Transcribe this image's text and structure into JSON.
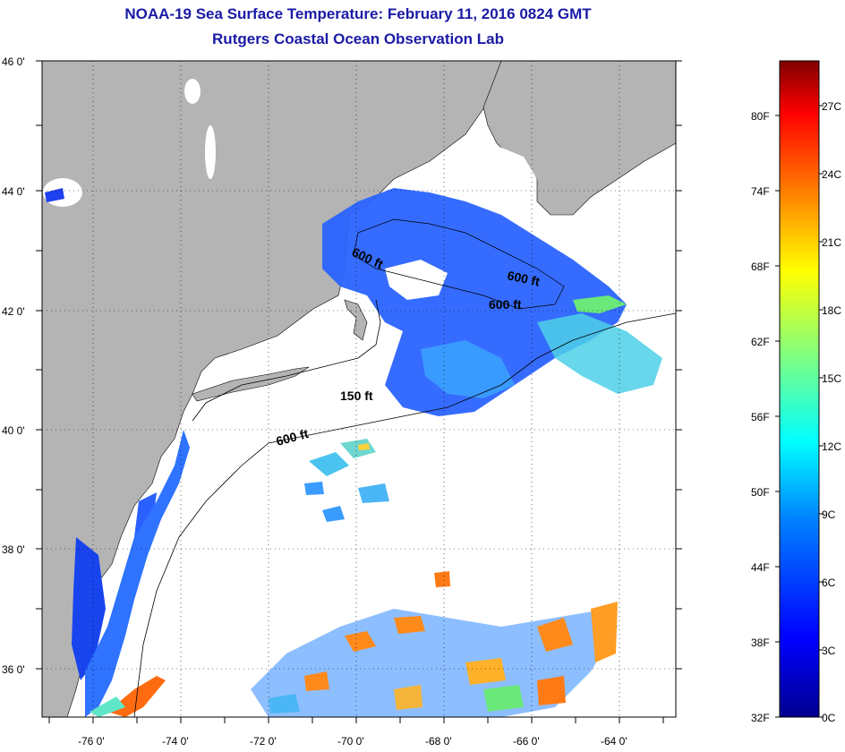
{
  "title": {
    "line1": "NOAA-19 Sea Surface Temperature:  February 11, 2016 0824 GMT",
    "line2": "Rutgers Coastal Ocean Observation Lab"
  },
  "map": {
    "lon_range": [
      -77.0,
      -62.5
    ],
    "lat_range": [
      35.0,
      46.0
    ],
    "lat_tick_labels": [
      "36 0'",
      "38 0'",
      "40 0'",
      "42 0'",
      "44 0'",
      "46 0'"
    ],
    "lon_tick_labels": [
      "-76 0'",
      "-74 0'",
      "-72 0'",
      "-70 0'",
      "-68 0'",
      "-66 0'",
      "-64 0'"
    ],
    "land_color": "#b4b4b4",
    "no_data_color": "#ffffff",
    "grid": "dotted",
    "contour_labels": [
      "600 ft",
      "600 ft",
      "600 ft",
      "150 ft",
      "600 ft"
    ]
  },
  "colorbar": {
    "range_c": [
      0,
      30
    ],
    "fahrenheit_labels": [
      "80F",
      "74F",
      "68F",
      "62F",
      "56F",
      "50F",
      "44F",
      "38F",
      "32F"
    ],
    "celsius_labels": [
      "27C",
      "24C",
      "21C",
      "18C",
      "15C",
      "12C",
      "9C",
      "6C",
      "3C",
      "0C"
    ]
  }
}
